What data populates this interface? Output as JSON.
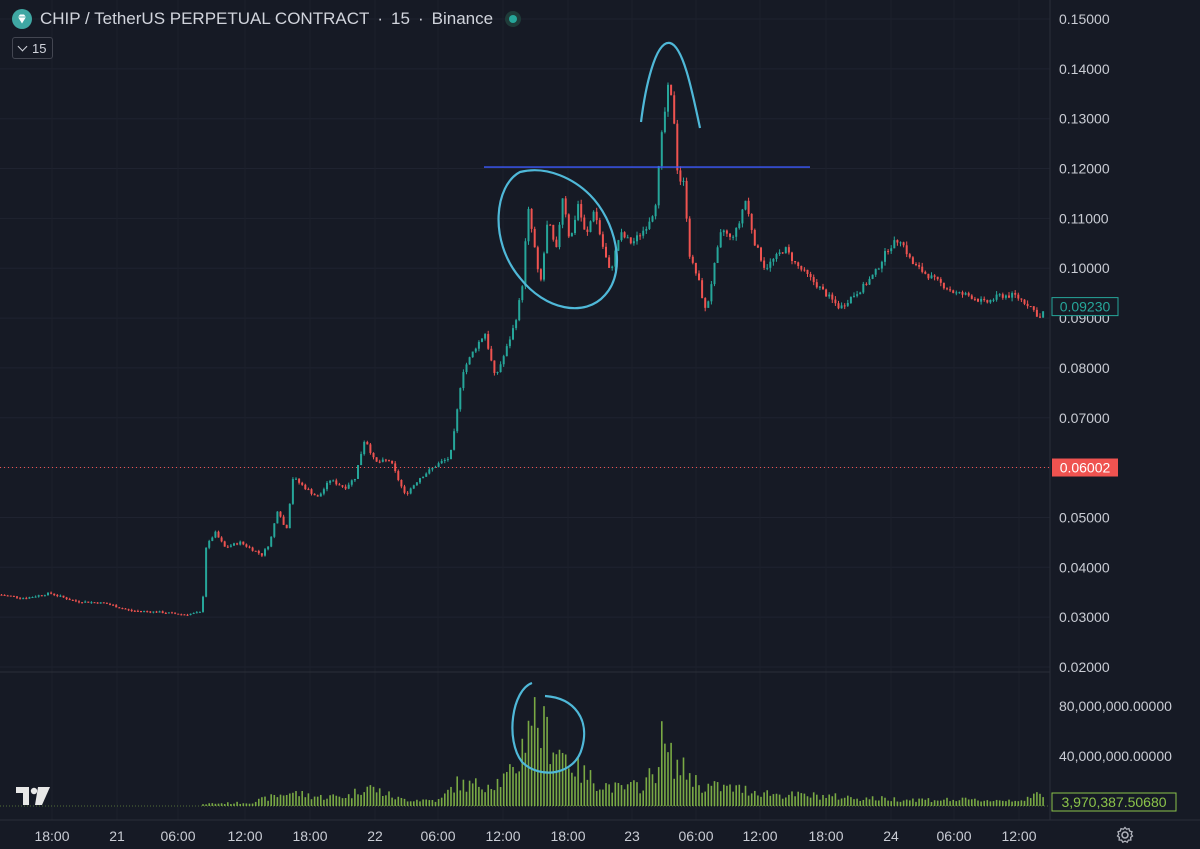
{
  "legend": {
    "symbol": "CHIP / TetherUS PERPETUAL CONTRACT",
    "sep1": "·",
    "interval": "15",
    "sep2": "·",
    "exchange": "Binance",
    "logo_icon": "diamond-icon",
    "status_icon": "market-status-dot-icon"
  },
  "interval_button": {
    "label": "15",
    "icon": "chevron-down-icon"
  },
  "price_axis": {
    "ticks": [
      "0.15000",
      "0.14000",
      "0.13000",
      "0.12000",
      "0.11000",
      "0.10000",
      "0.09000",
      "0.08000",
      "0.07000",
      "0.06000",
      "0.05000",
      "0.04000",
      "0.03000",
      "0.02000"
    ],
    "current_price_tag": "0.09230",
    "marker_tag": "0.06002"
  },
  "volume_axis": {
    "ticks": [
      "80,000,000.00000",
      "40,000,000.00000"
    ],
    "current_volume_tag": "3,970,387.50680"
  },
  "time_axis": {
    "labels": [
      "18:00",
      "21",
      "06:00",
      "12:00",
      "18:00",
      "22",
      "06:00",
      "12:00",
      "18:00",
      "23",
      "06:00",
      "12:00",
      "18:00",
      "24",
      "06:00",
      "12:00"
    ]
  },
  "colors": {
    "background": "#161a25",
    "up": "#26a69a",
    "down": "#ef5350",
    "volume": "#8bc34a",
    "annotation": "#4fb8d8",
    "resistance_line": "#3d5afe",
    "marker_line": "#ef5350"
  },
  "chart_data": {
    "type": "candlestick",
    "price_ylim": [
      0.02,
      0.15
    ],
    "volume_ylim": [
      0,
      100000000
    ],
    "series": [
      {
        "name": "",
        "type": "candlestick",
        "keypoints": [
          [
            0,
            0.0345
          ],
          [
            25,
            0.0338
          ],
          [
            50,
            0.0348
          ],
          [
            75,
            0.0332
          ],
          [
            105,
            0.0328
          ],
          [
            130,
            0.0313
          ],
          [
            160,
            0.031
          ],
          [
            185,
            0.0305
          ],
          [
            202,
            0.031
          ],
          [
            206,
            0.044
          ],
          [
            215,
            0.047
          ],
          [
            225,
            0.044
          ],
          [
            240,
            0.045
          ],
          [
            262,
            0.0425
          ],
          [
            270,
            0.045
          ],
          [
            278,
            0.052
          ],
          [
            286,
            0.047
          ],
          [
            293,
            0.058
          ],
          [
            305,
            0.056
          ],
          [
            318,
            0.054
          ],
          [
            330,
            0.0575
          ],
          [
            345,
            0.056
          ],
          [
            355,
            0.058
          ],
          [
            365,
            0.066
          ],
          [
            375,
            0.061
          ],
          [
            390,
            0.0615
          ],
          [
            405,
            0.0545
          ],
          [
            420,
            0.058
          ],
          [
            440,
            0.061
          ],
          [
            450,
            0.062
          ],
          [
            455,
            0.068
          ],
          [
            462,
            0.079
          ],
          [
            475,
            0.084
          ],
          [
            485,
            0.087
          ],
          [
            495,
            0.078
          ],
          [
            505,
            0.083
          ],
          [
            515,
            0.089
          ],
          [
            522,
            0.096
          ],
          [
            528,
            0.112
          ],
          [
            534,
            0.105
          ],
          [
            540,
            0.096
          ],
          [
            548,
            0.11
          ],
          [
            556,
            0.103
          ],
          [
            563,
            0.115
          ],
          [
            570,
            0.105
          ],
          [
            578,
            0.113
          ],
          [
            586,
            0.106
          ],
          [
            594,
            0.112
          ],
          [
            602,
            0.105
          ],
          [
            610,
            0.099
          ],
          [
            620,
            0.107
          ],
          [
            632,
            0.105
          ],
          [
            645,
            0.108
          ],
          [
            655,
            0.112
          ],
          [
            662,
            0.127
          ],
          [
            668,
            0.136
          ],
          [
            673,
            0.133
          ],
          [
            678,
            0.118
          ],
          [
            684,
            0.117
          ],
          [
            690,
            0.102
          ],
          [
            698,
            0.098
          ],
          [
            706,
            0.091
          ],
          [
            714,
            0.1
          ],
          [
            722,
            0.108
          ],
          [
            730,
            0.106
          ],
          [
            738,
            0.108
          ],
          [
            745,
            0.114
          ],
          [
            755,
            0.105
          ],
          [
            765,
            0.1
          ],
          [
            775,
            0.102
          ],
          [
            785,
            0.104
          ],
          [
            795,
            0.101
          ],
          [
            805,
            0.099
          ],
          [
            815,
            0.097
          ],
          [
            825,
            0.095
          ],
          [
            840,
            0.092
          ],
          [
            850,
            0.094
          ],
          [
            862,
            0.096
          ],
          [
            875,
            0.099
          ],
          [
            888,
            0.104
          ],
          [
            900,
            0.106
          ],
          [
            912,
            0.101
          ],
          [
            925,
            0.099
          ],
          [
            940,
            0.097
          ],
          [
            955,
            0.095
          ],
          [
            970,
            0.0945
          ],
          [
            985,
            0.093
          ],
          [
            1000,
            0.0945
          ],
          [
            1015,
            0.0945
          ],
          [
            1030,
            0.0925
          ],
          [
            1040,
            0.09
          ],
          [
            1046,
            0.0923
          ]
        ]
      },
      {
        "name": "",
        "type": "volume",
        "keypoints": [
          [
            0,
            0
          ],
          [
            200,
            0
          ],
          [
            205,
            2000000
          ],
          [
            250,
            3000000
          ],
          [
            268,
            7000000
          ],
          [
            290,
            12000000
          ],
          [
            320,
            8000000
          ],
          [
            350,
            9000000
          ],
          [
            365,
            18000000
          ],
          [
            400,
            6000000
          ],
          [
            440,
            5000000
          ],
          [
            456,
            20000000
          ],
          [
            470,
            18000000
          ],
          [
            500,
            22000000
          ],
          [
            515,
            30000000
          ],
          [
            522,
            50000000
          ],
          [
            530,
            88000000
          ],
          [
            540,
            70000000
          ],
          [
            550,
            60000000
          ],
          [
            565,
            45000000
          ],
          [
            580,
            30000000
          ],
          [
            600,
            20000000
          ],
          [
            620,
            15000000
          ],
          [
            640,
            18000000
          ],
          [
            655,
            30000000
          ],
          [
            662,
            58000000
          ],
          [
            668,
            45000000
          ],
          [
            678,
            35000000
          ],
          [
            690,
            28000000
          ],
          [
            700,
            18000000
          ],
          [
            740,
            15000000
          ],
          [
            780,
            10000000
          ],
          [
            820,
            9000000
          ],
          [
            860,
            7000000
          ],
          [
            900,
            6000000
          ],
          [
            950,
            5500000
          ],
          [
            1000,
            5000000
          ],
          [
            1030,
            6000000
          ],
          [
            1038,
            12000000
          ],
          [
            1046,
            4000000
          ]
        ]
      }
    ],
    "annotations": [
      {
        "type": "horizontal-line",
        "price": 0.1203
      },
      {
        "type": "horizontal-line",
        "price": 0.06002
      }
    ]
  }
}
